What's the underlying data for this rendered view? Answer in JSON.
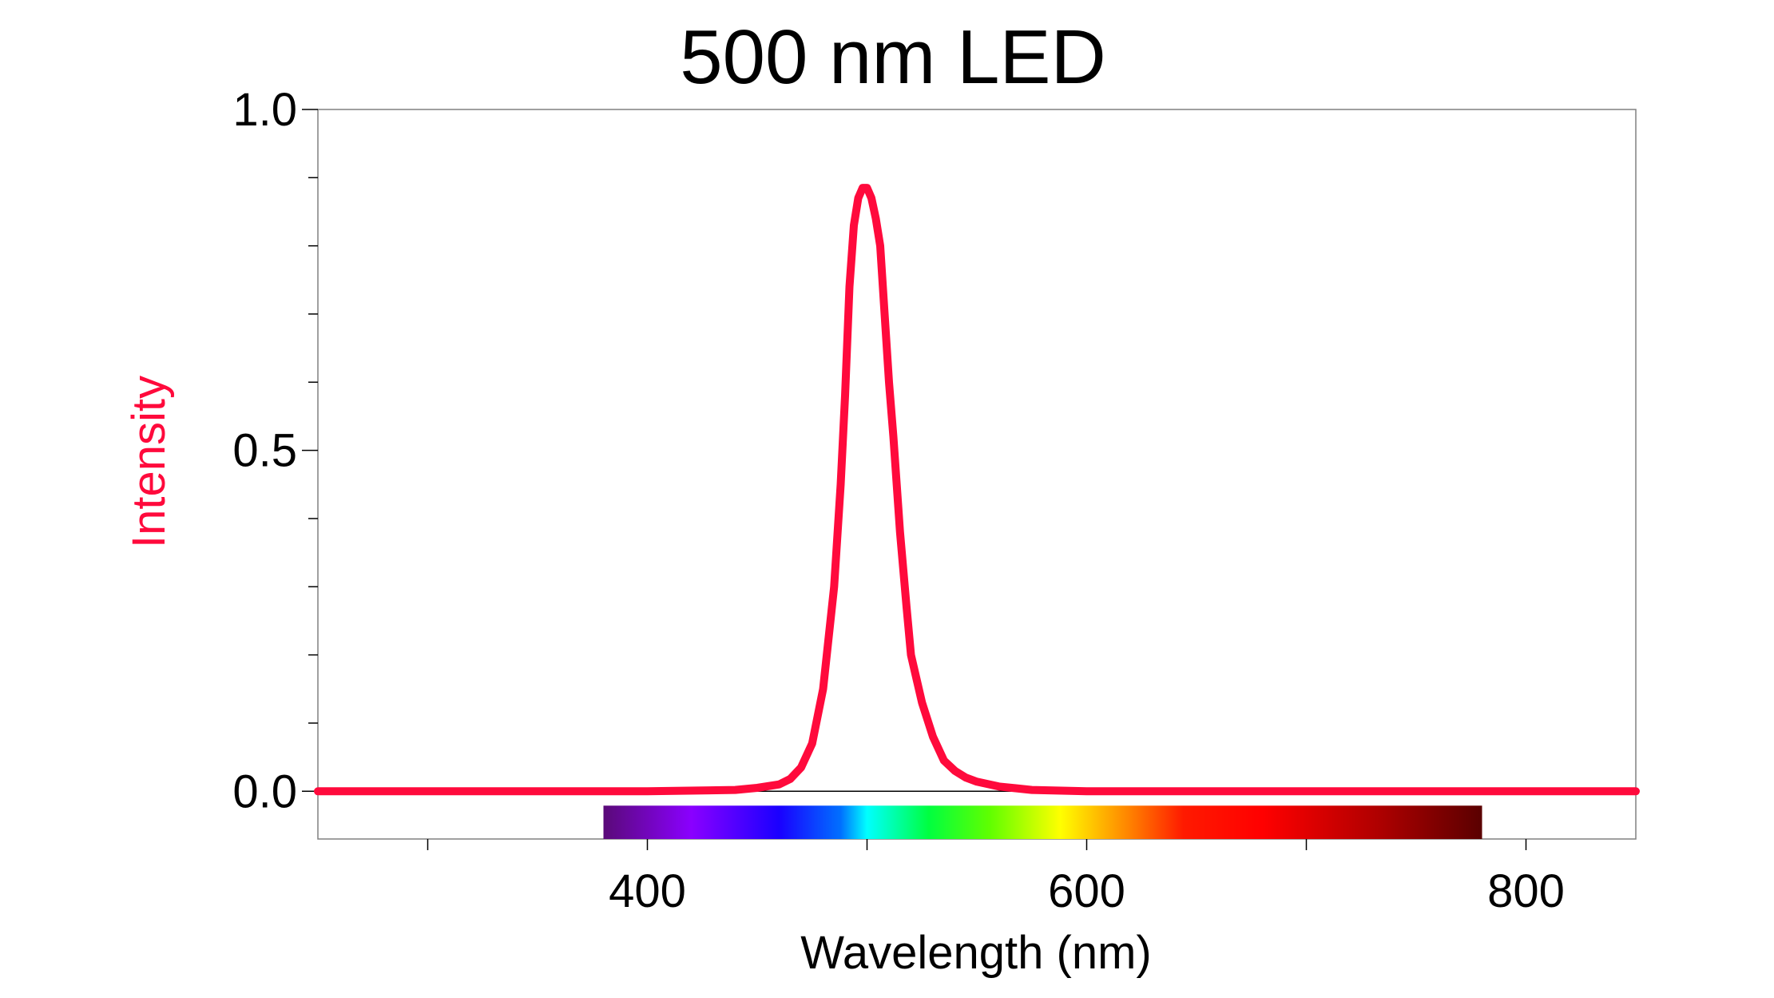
{
  "chart_data": {
    "type": "line",
    "title": "500 nm LED",
    "xlabel": "Wavelength (nm)",
    "ylabel": "Intensity",
    "xlim": [
      250,
      850
    ],
    "ylim": [
      -0.07,
      1.0
    ],
    "x_major_ticks": [
      400,
      600,
      800
    ],
    "x_minor_ticks": [
      300,
      500,
      700
    ],
    "y_major_ticks": [
      0.0,
      0.5,
      1.0
    ],
    "y_tick_labels": [
      "0.0",
      "0.5",
      "1.0"
    ],
    "y_minor_ticks": [
      0.1,
      0.2,
      0.3,
      0.4,
      0.6,
      0.7,
      0.8,
      0.9
    ],
    "grid": false,
    "legend": "none",
    "line_color": "#ff0a3c",
    "ylabel_color": "#ff0a3c",
    "spectrum_bar_range": [
      380,
      780
    ],
    "series": [
      {
        "values_x": [
          250,
          300,
          350,
          400,
          440,
          450,
          460,
          465,
          470,
          475,
          480,
          485,
          488,
          490,
          492,
          494,
          496,
          498,
          500,
          502,
          504,
          506,
          508,
          510,
          512,
          515,
          518,
          520,
          525,
          530,
          535,
          540,
          545,
          550,
          560,
          575,
          600,
          650,
          700,
          750,
          800,
          850
        ],
        "values_y": [
          0.0,
          0.0,
          0.0,
          0.0,
          0.002,
          0.005,
          0.01,
          0.018,
          0.035,
          0.07,
          0.15,
          0.3,
          0.45,
          0.58,
          0.74,
          0.83,
          0.87,
          0.885,
          0.885,
          0.87,
          0.84,
          0.8,
          0.7,
          0.6,
          0.52,
          0.38,
          0.27,
          0.2,
          0.13,
          0.08,
          0.045,
          0.03,
          0.02,
          0.014,
          0.007,
          0.002,
          0.0,
          0.0,
          0.0,
          0.0,
          0.0,
          0.0
        ]
      }
    ]
  }
}
